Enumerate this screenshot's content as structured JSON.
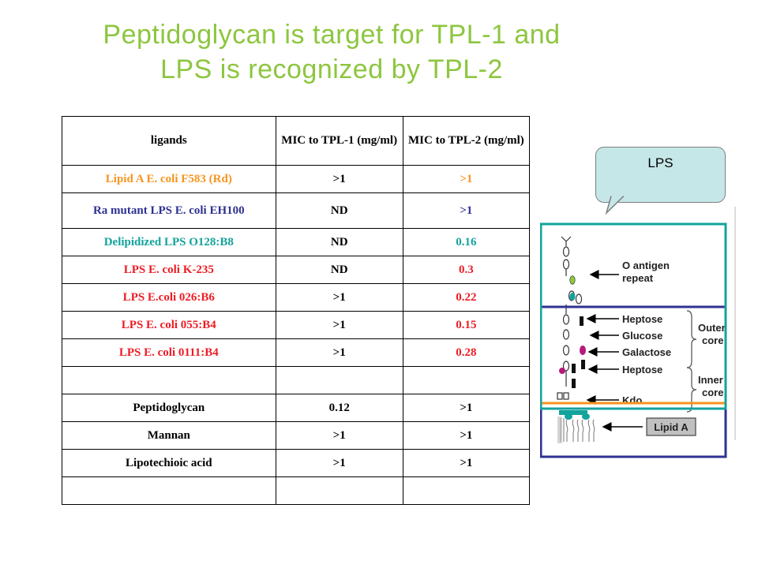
{
  "title": {
    "line1": "Peptidoglycan is target for TPL-1 and",
    "line2": "LPS is recognized by TPL-2",
    "color": "#8dc63f"
  },
  "table": {
    "headers": [
      "ligands",
      "MIC to TPL-1 (mg/ml)",
      "MIC to TPL-2 (mg/ml)"
    ],
    "rows": [
      {
        "ligand": "Lipid A E. coli F583 (Rd)",
        "tpl1": ">1",
        "tpl2": ">1",
        "ligand_color": "#f7941d",
        "tpl1_color": "#000000",
        "tpl2_color": "#f7941d"
      },
      {
        "ligand": "Ra mutant LPS E. coli EH100",
        "tpl1": "ND",
        "tpl2": ">1",
        "ligand_color": "#2e3192",
        "tpl1_color": "#000000",
        "tpl2_color": "#2e3192"
      },
      {
        "ligand": "Delipidized LPS O128:B8",
        "tpl1": "ND",
        "tpl2": "0.16",
        "ligand_color": "#12a39c",
        "tpl1_color": "#000000",
        "tpl2_color": "#12a39c"
      },
      {
        "ligand": "LPS E. coli K-235",
        "tpl1": "ND",
        "tpl2": "0.3",
        "ligand_color": "#ed1c24",
        "tpl1_color": "#000000",
        "tpl2_color": "#ed1c24"
      },
      {
        "ligand": "LPS E.coli 026:B6",
        "tpl1": ">1",
        "tpl2": "0.22",
        "ligand_color": "#ed1c24",
        "tpl1_color": "#000000",
        "tpl2_color": "#ed1c24"
      },
      {
        "ligand": "LPS E. coli 055:B4",
        "tpl1": ">1",
        "tpl2": "0.15",
        "ligand_color": "#ed1c24",
        "tpl1_color": "#000000",
        "tpl2_color": "#ed1c24"
      },
      {
        "ligand": "LPS E. coli 0111:B4",
        "tpl1": ">1",
        "tpl2": "0.28",
        "ligand_color": "#ed1c24",
        "tpl1_color": "#000000",
        "tpl2_color": "#ed1c24"
      },
      {
        "ligand": "",
        "tpl1": "",
        "tpl2": "",
        "ligand_color": "#000000",
        "tpl1_color": "#000000",
        "tpl2_color": "#000000"
      },
      {
        "ligand": "Peptidoglycan",
        "tpl1": "0.12",
        "tpl2": ">1",
        "ligand_color": "#000000",
        "tpl1_color": "#000000",
        "tpl2_color": "#000000"
      },
      {
        "ligand": "Mannan",
        "tpl1": ">1",
        "tpl2": ">1",
        "ligand_color": "#000000",
        "tpl1_color": "#000000",
        "tpl2_color": "#000000"
      },
      {
        "ligand": "Lipotechioic acid",
        "tpl1": ">1",
        "tpl2": ">1",
        "ligand_color": "#000000",
        "tpl1_color": "#000000",
        "tpl2_color": "#000000"
      },
      {
        "ligand": "",
        "tpl1": "",
        "tpl2": "",
        "ligand_color": "#000000",
        "tpl1_color": "#000000",
        "tpl2_color": "#000000"
      }
    ]
  },
  "callout": {
    "label": "LPS",
    "fill": "#c6e7e8"
  },
  "diagram": {
    "labels": {
      "o_antigen": "O antigen",
      "repeat": "repeat",
      "heptose_outer": "Heptose",
      "glucose": "Glucose",
      "galactose": "Galactose",
      "heptose_inner": "Heptose",
      "kdo": "Kdo",
      "lipid_a": "Lipid A",
      "outer_1": "Outer",
      "outer_2": "core",
      "inner_1": "Inner",
      "inner_2": "core"
    },
    "colors": {
      "teal_box": "#12a39c",
      "navy_box": "#2e3192",
      "orange_line": "#f7941d"
    }
  }
}
